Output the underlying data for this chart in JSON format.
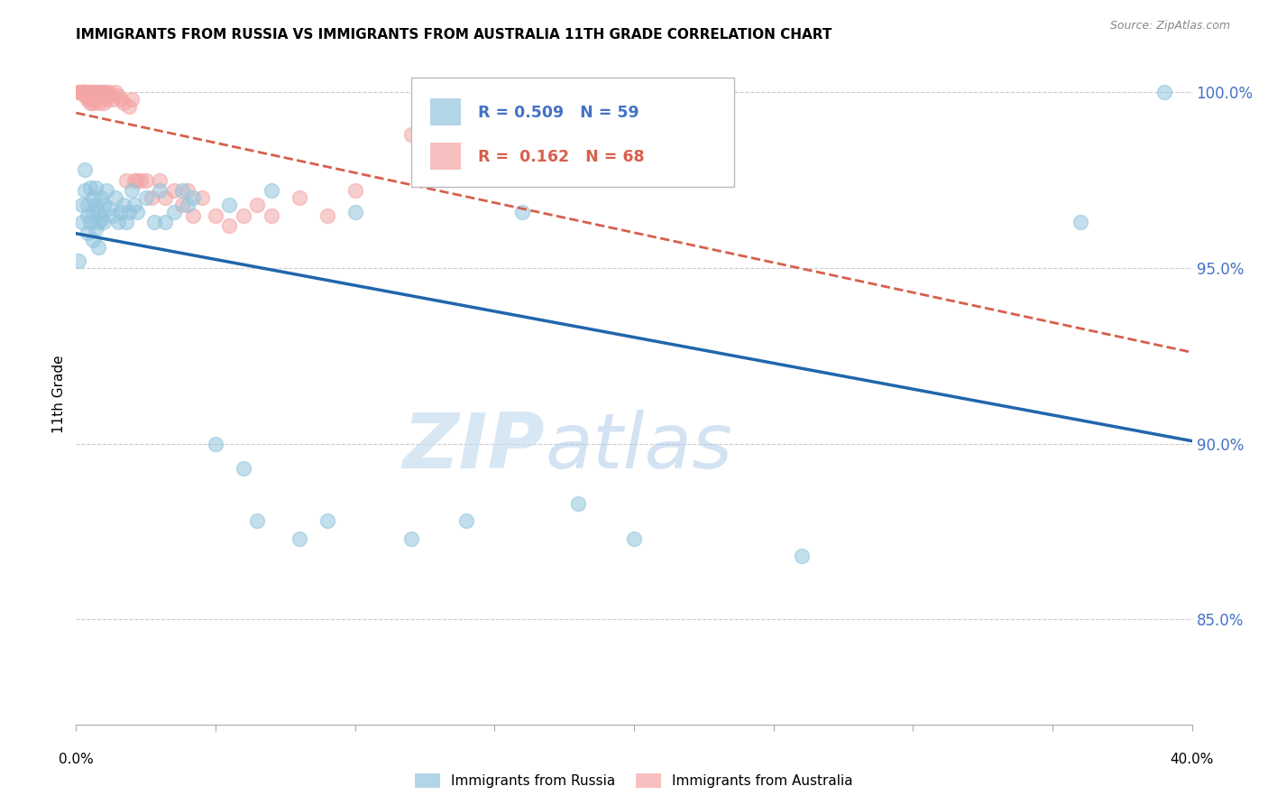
{
  "title": "IMMIGRANTS FROM RUSSIA VS IMMIGRANTS FROM AUSTRALIA 11TH GRADE CORRELATION CHART",
  "source": "Source: ZipAtlas.com",
  "legend_russia": "Immigrants from Russia",
  "legend_australia": "Immigrants from Australia",
  "R_russia": 0.509,
  "N_russia": 59,
  "R_australia": 0.162,
  "N_australia": 68,
  "russia_color": "#92c5de",
  "australia_color": "#f4a5a5",
  "russia_line_color": "#2166ac",
  "australia_line_color": "#d6604d",
  "watermark_zip": "ZIP",
  "watermark_atlas": "atlas",
  "xmin": 0.0,
  "xmax": 0.4,
  "ymin": 0.82,
  "ymax": 1.008,
  "russia_x": [
    0.001,
    0.002,
    0.002,
    0.003,
    0.003,
    0.004,
    0.004,
    0.004,
    0.005,
    0.005,
    0.006,
    0.006,
    0.006,
    0.007,
    0.007,
    0.007,
    0.008,
    0.008,
    0.008,
    0.009,
    0.009,
    0.01,
    0.01,
    0.011,
    0.012,
    0.013,
    0.014,
    0.015,
    0.016,
    0.017,
    0.018,
    0.019,
    0.02,
    0.021,
    0.022,
    0.025,
    0.028,
    0.03,
    0.032,
    0.035,
    0.038,
    0.04,
    0.042,
    0.05,
    0.055,
    0.06,
    0.065,
    0.07,
    0.08,
    0.09,
    0.1,
    0.12,
    0.14,
    0.16,
    0.18,
    0.2,
    0.26,
    0.36,
    0.39
  ],
  "russia_y": [
    0.952,
    0.968,
    0.963,
    0.978,
    0.972,
    0.968,
    0.965,
    0.96,
    0.973,
    0.963,
    0.97,
    0.966,
    0.958,
    0.973,
    0.968,
    0.961,
    0.966,
    0.963,
    0.956,
    0.97,
    0.964,
    0.968,
    0.963,
    0.972,
    0.967,
    0.965,
    0.97,
    0.963,
    0.966,
    0.968,
    0.963,
    0.966,
    0.972,
    0.968,
    0.966,
    0.97,
    0.963,
    0.972,
    0.963,
    0.966,
    0.972,
    0.968,
    0.97,
    0.9,
    0.968,
    0.893,
    0.878,
    0.972,
    0.873,
    0.878,
    0.966,
    0.873,
    0.878,
    0.966,
    0.883,
    0.873,
    0.868,
    0.963,
    1.0
  ],
  "australia_x": [
    0.001,
    0.001,
    0.002,
    0.002,
    0.002,
    0.003,
    0.003,
    0.003,
    0.003,
    0.004,
    0.004,
    0.004,
    0.004,
    0.005,
    0.005,
    0.005,
    0.005,
    0.006,
    0.006,
    0.006,
    0.006,
    0.007,
    0.007,
    0.007,
    0.008,
    0.008,
    0.008,
    0.009,
    0.009,
    0.01,
    0.01,
    0.01,
    0.011,
    0.011,
    0.012,
    0.012,
    0.013,
    0.014,
    0.015,
    0.016,
    0.017,
    0.018,
    0.019,
    0.02,
    0.021,
    0.022,
    0.023,
    0.025,
    0.027,
    0.03,
    0.032,
    0.035,
    0.038,
    0.04,
    0.042,
    0.045,
    0.05,
    0.055,
    0.06,
    0.065,
    0.07,
    0.08,
    0.09,
    0.1,
    0.12,
    0.14,
    0.16,
    0.18
  ],
  "australia_y": [
    1.0,
    1.0,
    1.0,
    1.0,
    1.0,
    1.0,
    1.0,
    1.0,
    0.999,
    1.0,
    0.999,
    0.999,
    0.998,
    1.0,
    0.999,
    0.998,
    0.997,
    1.0,
    0.999,
    0.998,
    0.997,
    1.0,
    0.999,
    0.998,
    1.0,
    0.999,
    0.997,
    1.0,
    0.999,
    1.0,
    0.999,
    0.997,
    1.0,
    0.998,
    1.0,
    0.999,
    0.998,
    1.0,
    0.999,
    0.998,
    0.997,
    0.975,
    0.996,
    0.998,
    0.975,
    0.975,
    0.975,
    0.975,
    0.97,
    0.975,
    0.97,
    0.972,
    0.968,
    0.972,
    0.965,
    0.97,
    0.965,
    0.962,
    0.965,
    0.968,
    0.965,
    0.97,
    0.965,
    0.972,
    0.988,
    0.99,
    0.988,
    0.992
  ],
  "ytick_values": [
    0.85,
    0.9,
    0.95,
    1.0
  ],
  "ytick_labels": [
    "85.0%",
    "90.0%",
    "95.0%",
    "100.0%"
  ]
}
